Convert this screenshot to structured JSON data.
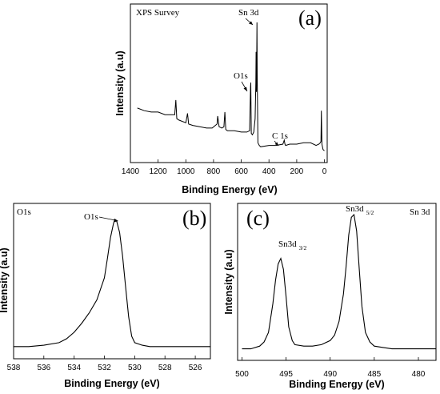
{
  "chart_data": [
    {
      "type": "line",
      "panel": "(a)",
      "title": "XPS Survey",
      "xlabel": "Binding Energy (eV)",
      "ylabel": "Intensity (a.u)",
      "xlim": [
        1400,
        -20
      ],
      "x_reversed": true,
      "x_ticks": [
        "1400",
        "1200",
        "1000",
        "800",
        "600",
        "400",
        "200",
        "0"
      ],
      "y_ticks_shown": false,
      "annotations": [
        {
          "text": "Sn 3d",
          "x": 487,
          "y": 1.0
        },
        {
          "text": "O1s",
          "x": 531,
          "y": 0.53
        },
        {
          "text": "C 1s",
          "x": 285,
          "y": 0.11
        }
      ],
      "series": [
        {
          "x": [
            1350,
            1300,
            1250,
            1200,
            1150,
            1100,
            1080,
            1072,
            1065,
            1050,
            1000,
            988,
            980,
            950,
            900,
            850,
            810,
            775,
            770,
            760,
            740,
            725,
            718,
            712,
            700,
            650,
            600,
            560,
            540,
            533,
            531,
            528,
            520,
            510,
            500,
            495,
            493,
            490,
            487,
            485,
            480,
            470,
            460,
            400,
            350,
            300,
            290,
            285,
            280,
            250,
            200,
            150,
            100,
            60,
            40,
            30,
            25,
            22,
            18,
            10,
            0
          ],
          "y": [
            0.36,
            0.34,
            0.33,
            0.33,
            0.31,
            0.31,
            0.31,
            0.42,
            0.28,
            0.27,
            0.25,
            0.32,
            0.24,
            0.23,
            0.22,
            0.21,
            0.21,
            0.24,
            0.3,
            0.22,
            0.21,
            0.22,
            0.33,
            0.2,
            0.19,
            0.19,
            0.18,
            0.18,
            0.19,
            0.52,
            0.55,
            0.17,
            0.16,
            0.18,
            0.28,
            0.55,
            0.78,
            0.48,
            1.0,
            0.62,
            0.1,
            0.08,
            0.07,
            0.08,
            0.08,
            0.09,
            0.12,
            0.09,
            0.08,
            0.09,
            0.09,
            0.1,
            0.1,
            0.08,
            0.09,
            0.1,
            0.11,
            0.34,
            0.09,
            0.05,
            0.04
          ]
        }
      ]
    },
    {
      "type": "line",
      "panel": "(b)",
      "title": "O1s",
      "xlabel": "Binding Energy (eV)",
      "ylabel": "Intensity (a.u)",
      "xlim": [
        538,
        525
      ],
      "x_reversed": true,
      "x_ticks": [
        "538",
        "536",
        "534",
        "532",
        "530",
        "528",
        "526"
      ],
      "y_ticks_shown": false,
      "annotations": [
        {
          "text": "O1s",
          "x": 531.3,
          "y": 1.0
        }
      ],
      "series": [
        {
          "x": [
            538,
            537,
            536,
            535,
            534.5,
            534,
            533.5,
            533,
            532.5,
            532,
            531.8,
            531.6,
            531.4,
            531.3,
            531.2,
            531.0,
            530.8,
            530.6,
            530.4,
            530.2,
            530.0,
            529.5,
            529,
            528,
            527,
            526,
            525
          ],
          "y": [
            0.02,
            0.02,
            0.03,
            0.05,
            0.08,
            0.13,
            0.2,
            0.28,
            0.38,
            0.55,
            0.7,
            0.86,
            0.97,
            1.0,
            0.99,
            0.9,
            0.72,
            0.48,
            0.25,
            0.1,
            0.05,
            0.03,
            0.02,
            0.02,
            0.02,
            0.02,
            0.02
          ]
        }
      ]
    },
    {
      "type": "line",
      "panel": "(c)",
      "title": "Sn 3d",
      "xlabel": "Binding Energy (eV)",
      "ylabel": "Intensity (a.u)",
      "xlim": [
        500.5,
        478
      ],
      "x_reversed": true,
      "x_ticks": [
        "500",
        "495",
        "490",
        "485",
        "480"
      ],
      "y_ticks_shown": false,
      "annotations": [
        {
          "text": "Sn3d",
          "sub": "3/2",
          "x": 495.4,
          "y": 0.68
        },
        {
          "text": "Sn3d",
          "sub": "5/2",
          "x": 487.2,
          "y": 1.0
        }
      ],
      "series": [
        {
          "x": [
            500,
            499,
            498,
            497.5,
            497,
            496.5,
            496.2,
            495.9,
            495.6,
            495.3,
            495.0,
            494.7,
            494.3,
            494,
            493,
            492,
            491,
            490,
            489.5,
            489,
            488.5,
            488.2,
            487.9,
            487.6,
            487.3,
            487.0,
            486.7,
            486.4,
            486.0,
            485.5,
            485,
            484,
            483,
            482,
            481,
            480,
            479,
            478
          ],
          "y": [
            0.02,
            0.02,
            0.04,
            0.07,
            0.14,
            0.35,
            0.52,
            0.64,
            0.68,
            0.6,
            0.4,
            0.18,
            0.08,
            0.05,
            0.04,
            0.04,
            0.05,
            0.08,
            0.12,
            0.22,
            0.42,
            0.62,
            0.85,
            0.98,
            1.0,
            0.88,
            0.6,
            0.33,
            0.14,
            0.07,
            0.04,
            0.03,
            0.02,
            0.02,
            0.02,
            0.02,
            0.02,
            0.02
          ]
        }
      ]
    }
  ]
}
